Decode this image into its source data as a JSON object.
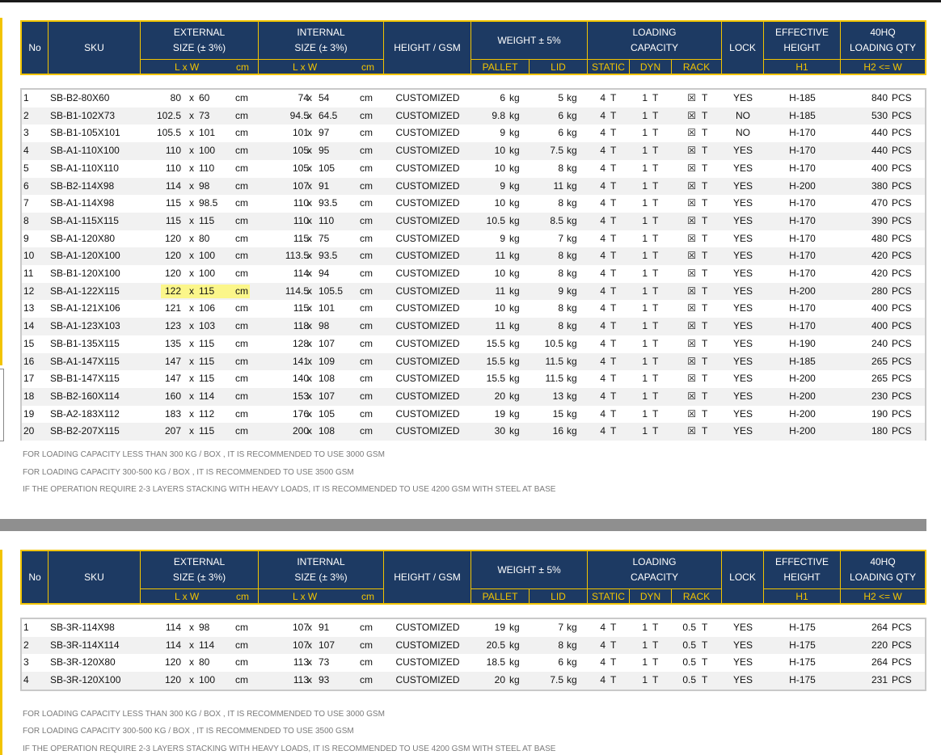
{
  "header": {
    "no": "No",
    "sku": "SKU",
    "external_line1": "EXTERNAL",
    "external_line2": "SIZE  (± 3%)",
    "internal_line1": "INTERNAL",
    "internal_line2": "SIZE  (± 3%)",
    "height_gsm": "HEIGHT / GSM",
    "weight": "WEIGHT ± 5%",
    "loading_line1": "LOADING",
    "loading_line2": "CAPACITY",
    "lock": "LOCK",
    "effective_line1": "EFFECTIVE",
    "effective_line2": "HEIGHT",
    "qty_line1": "40HQ",
    "qty_line2": "LOADING QTY",
    "sub_lw": "L  x  W",
    "sub_cm": "cm",
    "sub_pallet": "PALLET",
    "sub_lid": "LID",
    "sub_static": "STATIC",
    "sub_dyn": "DYN",
    "sub_rack": "RACK",
    "sub_h1": "H1",
    "sub_h2": "H2 <= W"
  },
  "units": {
    "x": "x",
    "cm": "cm",
    "kg": "kg",
    "t": "T",
    "pcs": "PCS"
  },
  "table1": {
    "rows": [
      {
        "no": "1",
        "sku": "SB-B2-80X60",
        "el": "80",
        "ew": "60",
        "il": "74",
        "iw": "54",
        "gsm": "CUSTOMIZED",
        "pallet": "6",
        "lid": "5",
        "static": "4",
        "dyn": "1",
        "rack": "☒",
        "lock": "YES",
        "h1": "H-185",
        "qty": "840"
      },
      {
        "no": "2",
        "sku": "SB-B1-102X73",
        "el": "102.5",
        "ew": "73",
        "il": "94.5",
        "iw": "64.5",
        "gsm": "CUSTOMIZED",
        "pallet": "9.8",
        "lid": "6",
        "static": "4",
        "dyn": "1",
        "rack": "☒",
        "lock": "NO",
        "h1": "H-185",
        "qty": "530"
      },
      {
        "no": "3",
        "sku": "SB-B1-105X101",
        "el": "105.5",
        "ew": "101",
        "il": "101",
        "iw": "97",
        "gsm": "CUSTOMIZED",
        "pallet": "9",
        "lid": "6",
        "static": "4",
        "dyn": "1",
        "rack": "☒",
        "lock": "NO",
        "h1": "H-170",
        "qty": "440"
      },
      {
        "no": "4",
        "sku": "SB-A1-110X100",
        "el": "110",
        "ew": "100",
        "il": "105",
        "iw": "95",
        "gsm": "CUSTOMIZED",
        "pallet": "10",
        "lid": "7.5",
        "static": "4",
        "dyn": "1",
        "rack": "☒",
        "lock": "YES",
        "h1": "H-170",
        "qty": "440"
      },
      {
        "no": "5",
        "sku": "SB-A1-110X110",
        "el": "110",
        "ew": "110",
        "il": "105",
        "iw": "105",
        "gsm": "CUSTOMIZED",
        "pallet": "10",
        "lid": "8",
        "static": "4",
        "dyn": "1",
        "rack": "☒",
        "lock": "YES",
        "h1": "H-170",
        "qty": "400"
      },
      {
        "no": "6",
        "sku": "SB-B2-114X98",
        "el": "114",
        "ew": "98",
        "il": "107",
        "iw": "91",
        "gsm": "CUSTOMIZED",
        "pallet": "9",
        "lid": "11",
        "static": "4",
        "dyn": "1",
        "rack": "☒",
        "lock": "YES",
        "h1": "H-200",
        "qty": "380"
      },
      {
        "no": "7",
        "sku": "SB-A1-114X98",
        "el": "115",
        "ew": "98.5",
        "il": "110",
        "iw": "93.5",
        "gsm": "CUSTOMIZED",
        "pallet": "10",
        "lid": "8",
        "static": "4",
        "dyn": "1",
        "rack": "☒",
        "lock": "YES",
        "h1": "H-170",
        "qty": "470"
      },
      {
        "no": "8",
        "sku": "SB-A1-115X115",
        "el": "115",
        "ew": "115",
        "il": "110",
        "iw": "110",
        "gsm": "CUSTOMIZED",
        "pallet": "10.5",
        "lid": "8.5",
        "static": "4",
        "dyn": "1",
        "rack": "☒",
        "lock": "YES",
        "h1": "H-170",
        "qty": "390"
      },
      {
        "no": "9",
        "sku": "SB-A1-120X80",
        "el": "120",
        "ew": "80",
        "il": "115",
        "iw": "75",
        "gsm": "CUSTOMIZED",
        "pallet": "9",
        "lid": "7",
        "static": "4",
        "dyn": "1",
        "rack": "☒",
        "lock": "YES",
        "h1": "H-170",
        "qty": "480"
      },
      {
        "no": "10",
        "sku": "SB-A1-120X100",
        "el": "120",
        "ew": "100",
        "il": "113.5",
        "iw": "93.5",
        "gsm": "CUSTOMIZED",
        "pallet": "11",
        "lid": "8",
        "static": "4",
        "dyn": "1",
        "rack": "☒",
        "lock": "YES",
        "h1": "H-170",
        "qty": "420"
      },
      {
        "no": "11",
        "sku": "SB-B1-120X100",
        "el": "120",
        "ew": "100",
        "il": "114",
        "iw": "94",
        "gsm": "CUSTOMIZED",
        "pallet": "10",
        "lid": "8",
        "static": "4",
        "dyn": "1",
        "rack": "☒",
        "lock": "YES",
        "h1": "H-170",
        "qty": "420"
      },
      {
        "no": "12",
        "sku": "SB-A1-122X115",
        "el": "122",
        "ew": "115",
        "il": "114.5",
        "iw": "105.5",
        "gsm": "CUSTOMIZED",
        "pallet": "11",
        "lid": "9",
        "static": "4",
        "dyn": "1",
        "rack": "☒",
        "lock": "YES",
        "h1": "H-200",
        "qty": "280",
        "highlight": true
      },
      {
        "no": "13",
        "sku": "SB-A1-121X106",
        "el": "121",
        "ew": "106",
        "il": "115",
        "iw": "101",
        "gsm": "CUSTOMIZED",
        "pallet": "10",
        "lid": "8",
        "static": "4",
        "dyn": "1",
        "rack": "☒",
        "lock": "YES",
        "h1": "H-170",
        "qty": "400"
      },
      {
        "no": "14",
        "sku": "SB-A1-123X103",
        "el": "123",
        "ew": "103",
        "il": "118",
        "iw": "98",
        "gsm": "CUSTOMIZED",
        "pallet": "11",
        "lid": "8",
        "static": "4",
        "dyn": "1",
        "rack": "☒",
        "lock": "YES",
        "h1": "H-170",
        "qty": "400"
      },
      {
        "no": "15",
        "sku": "SB-B1-135X115",
        "el": "135",
        "ew": "115",
        "il": "128",
        "iw": "107",
        "gsm": "CUSTOMIZED",
        "pallet": "15.5",
        "lid": "10.5",
        "static": "4",
        "dyn": "1",
        "rack": "☒",
        "lock": "YES",
        "h1": "H-190",
        "qty": "240"
      },
      {
        "no": "16",
        "sku": "SB-A1-147X115",
        "el": "147",
        "ew": "115",
        "il": "141",
        "iw": "109",
        "gsm": "CUSTOMIZED",
        "pallet": "15.5",
        "lid": "11.5",
        "static": "4",
        "dyn": "1",
        "rack": "☒",
        "lock": "YES",
        "h1": "H-185",
        "qty": "265"
      },
      {
        "no": "17",
        "sku": "SB-B1-147X115",
        "el": "147",
        "ew": "115",
        "il": "140",
        "iw": "108",
        "gsm": "CUSTOMIZED",
        "pallet": "15.5",
        "lid": "11.5",
        "static": "4",
        "dyn": "1",
        "rack": "☒",
        "lock": "YES",
        "h1": "H-200",
        "qty": "265"
      },
      {
        "no": "18",
        "sku": "SB-B2-160X114",
        "el": "160",
        "ew": "114",
        "il": "153",
        "iw": "107",
        "gsm": "CUSTOMIZED",
        "pallet": "20",
        "lid": "13",
        "static": "4",
        "dyn": "1",
        "rack": "☒",
        "lock": "YES",
        "h1": "H-200",
        "qty": "230"
      },
      {
        "no": "19",
        "sku": "SB-A2-183X112",
        "el": "183",
        "ew": "112",
        "il": "176",
        "iw": "105",
        "gsm": "CUSTOMIZED",
        "pallet": "19",
        "lid": "15",
        "static": "4",
        "dyn": "1",
        "rack": "☒",
        "lock": "YES",
        "h1": "H-200",
        "qty": "190"
      },
      {
        "no": "20",
        "sku": "SB-B2-207X115",
        "el": "207",
        "ew": "115",
        "il": "200",
        "iw": "108",
        "gsm": "CUSTOMIZED",
        "pallet": "30",
        "lid": "16",
        "static": "4",
        "dyn": "1",
        "rack": "☒",
        "lock": "YES",
        "h1": "H-200",
        "qty": "180"
      }
    ]
  },
  "table2": {
    "rows": [
      {
        "no": "1",
        "sku": "SB-3R-114X98",
        "el": "114",
        "ew": "98",
        "il": "107",
        "iw": "91",
        "gsm": "CUSTOMIZED",
        "pallet": "19",
        "lid": "7",
        "static": "4",
        "dyn": "1",
        "rack": "0.5",
        "lock": "YES",
        "h1": "H-175",
        "qty": "264"
      },
      {
        "no": "2",
        "sku": "SB-3R-114X114",
        "el": "114",
        "ew": "114",
        "il": "107",
        "iw": "107",
        "gsm": "CUSTOMIZED",
        "pallet": "20.5",
        "lid": "8",
        "static": "4",
        "dyn": "1",
        "rack": "0.5",
        "lock": "YES",
        "h1": "H-175",
        "qty": "220"
      },
      {
        "no": "3",
        "sku": "SB-3R-120X80",
        "el": "120",
        "ew": "80",
        "il": "113",
        "iw": "73",
        "gsm": "CUSTOMIZED",
        "pallet": "18.5",
        "lid": "6",
        "static": "4",
        "dyn": "1",
        "rack": "0.5",
        "lock": "YES",
        "h1": "H-175",
        "qty": "264"
      },
      {
        "no": "4",
        "sku": "SB-3R-120X100",
        "el": "120",
        "ew": "100",
        "il": "113",
        "iw": "93",
        "gsm": "CUSTOMIZED",
        "pallet": "20",
        "lid": "7.5",
        "static": "4",
        "dyn": "1",
        "rack": "0.5",
        "lock": "YES",
        "h1": "H-175",
        "qty": "231"
      }
    ]
  },
  "notes": [
    "FOR LOADING CAPACITY LESS THAN 300 KG / BOX , IT IS RECOMMENDED TO USE 3000 GSM",
    "FOR LOADING CAPACITY 300-500 KG / BOX , IT IS RECOMMENDED TO USE 3500 GSM",
    "IF THE OPERATION REQUIRE 2-3 LAYERS STACKING WITH HEAVY LOADS, IT IS RECOMMENDED TO USE 4200 GSM WITH STEEL AT BASE"
  ],
  "colors": {
    "header_bg": "#1d3a63",
    "header_border": "#f2c400",
    "highlight": "#fbf68a"
  }
}
